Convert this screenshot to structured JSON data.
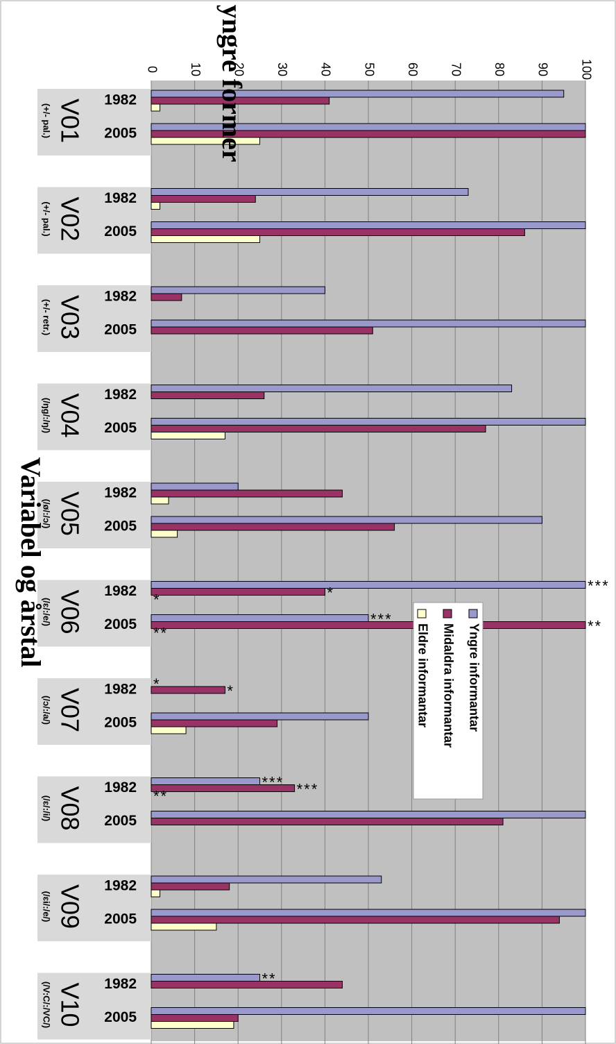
{
  "chart_data": {
    "type": "bar",
    "orientation": "horizontal",
    "title": "Prosent yngre former",
    "xlabel": "Variabel og årstal",
    "ylabel": "",
    "ylim": [
      0,
      100
    ],
    "ticks": [
      "0",
      "10",
      "20",
      "30",
      "40",
      "50",
      "60",
      "70",
      "80",
      "90",
      "100"
    ],
    "grid": true,
    "legend_position": "center-right",
    "series": [
      {
        "name": "Yngre informantar",
        "color": "#9999cc"
      },
      {
        "name": "Midaldra informantar",
        "color": "#993366"
      },
      {
        "name": "Eldre informantar",
        "color": "#ffffcc"
      }
    ],
    "groups": [
      {
        "label": "V01",
        "sublabel": "(+/- pal.)",
        "years": [
          {
            "year": "1982",
            "values": [
              95,
              41,
              2
            ],
            "marks": [
              "",
              "",
              ""
            ]
          },
          {
            "year": "2005",
            "values": [
              100,
              100,
              25
            ],
            "marks": [
              "",
              "",
              ""
            ]
          }
        ]
      },
      {
        "label": "V02",
        "sublabel": "(+/- pal.)",
        "years": [
          {
            "year": "1982",
            "values": [
              73,
              24,
              2
            ],
            "marks": [
              "",
              "",
              ""
            ]
          },
          {
            "year": "2005",
            "values": [
              100,
              86,
              25
            ],
            "marks": [
              "",
              "",
              ""
            ]
          }
        ]
      },
      {
        "label": "V03",
        "sublabel": "(+/- retr.)",
        "years": [
          {
            "year": "1982",
            "values": [
              40,
              7,
              0
            ],
            "marks": [
              "",
              "",
              ""
            ]
          },
          {
            "year": "2005",
            "values": [
              100,
              51,
              0
            ],
            "marks": [
              "",
              "",
              ""
            ]
          }
        ]
      },
      {
        "label": "V04",
        "sublabel": "(/ŋg/:/ŋ/)",
        "years": [
          {
            "year": "1982",
            "values": [
              83,
              26,
              0
            ],
            "marks": [
              "",
              "",
              ""
            ]
          },
          {
            "year": "2005",
            "values": [
              100,
              77,
              17
            ],
            "marks": [
              "",
              "",
              ""
            ]
          }
        ]
      },
      {
        "label": "V05",
        "sublabel": "(/ø/:/ɔ/)",
        "years": [
          {
            "year": "1982",
            "values": [
              20,
              44,
              4
            ],
            "marks": [
              "",
              "",
              ""
            ]
          },
          {
            "year": "2005",
            "values": [
              90,
              56,
              6
            ],
            "marks": [
              "",
              "",
              ""
            ]
          }
        ]
      },
      {
        "label": "V06",
        "sublabel": "(/ɛ/:/e/)",
        "years": [
          {
            "year": "1982",
            "values": [
              100,
              40,
              0
            ],
            "marks": [
              "***",
              "*",
              "*"
            ]
          },
          {
            "year": "2005",
            "values": [
              50,
              100,
              0
            ],
            "marks": [
              "***",
              "**",
              "**"
            ]
          }
        ]
      },
      {
        "label": "V07",
        "sublabel": "(/ɔ/:/a/)",
        "years": [
          {
            "year": "1982",
            "values": [
              0,
              17,
              0
            ],
            "marks": [
              "*",
              "*",
              ""
            ]
          },
          {
            "year": "2005",
            "values": [
              50,
              29,
              8
            ],
            "marks": [
              "",
              "",
              ""
            ]
          }
        ]
      },
      {
        "label": "V08",
        "sublabel": "(/ɛ/:/i/)",
        "years": [
          {
            "year": "1982",
            "values": [
              25,
              33,
              0
            ],
            "marks": [
              "***",
              "***",
              "**"
            ]
          },
          {
            "year": "2005",
            "values": [
              100,
              81,
              0
            ],
            "marks": [
              "",
              "",
              ""
            ]
          }
        ]
      },
      {
        "label": "V09",
        "sublabel": "(/ɛi/:/e/)",
        "years": [
          {
            "year": "1982",
            "values": [
              53,
              18,
              2
            ],
            "marks": [
              "",
              "",
              ""
            ]
          },
          {
            "year": "2005",
            "values": [
              100,
              94,
              15
            ],
            "marks": [
              "",
              "",
              ""
            ]
          }
        ]
      },
      {
        "label": "V10",
        "sublabel": "(/V:C/:/VC/)",
        "years": [
          {
            "year": "1982",
            "values": [
              25,
              44,
              0
            ],
            "marks": [
              "**",
              "",
              ""
            ]
          },
          {
            "year": "2005",
            "values": [
              100,
              20,
              19
            ],
            "marks": [
              "",
              "",
              ""
            ]
          }
        ]
      }
    ]
  }
}
